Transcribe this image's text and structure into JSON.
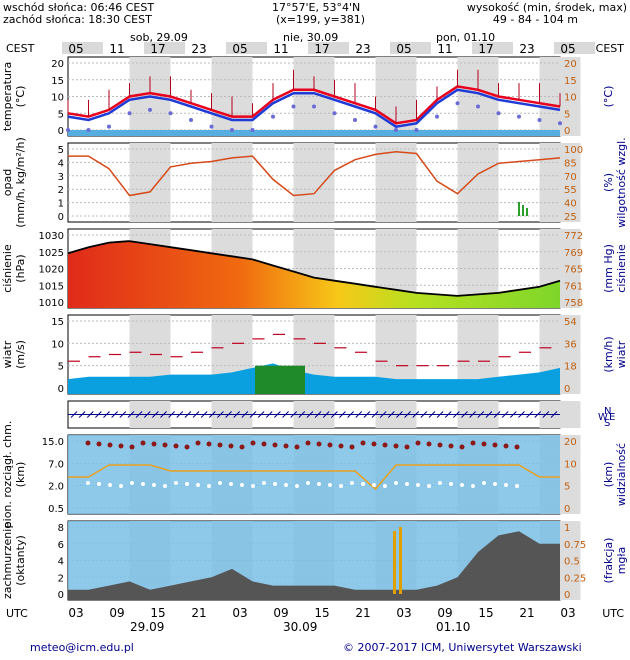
{
  "header": {
    "sunrise": "wschód słońca: 06:46 CEST",
    "sunset": "zachód słońca: 18:30 CEST",
    "coords": "17°57'E, 53°4'N",
    "grid": "(x=199, y=381)",
    "altitude_title": "wysokość (min, środek, max)",
    "altitude_values": "49 - 84 - 104 m"
  },
  "top_axis": {
    "tz": "CEST",
    "days": [
      "sob, 29.09",
      "nie, 30.09",
      "pon, 01.10"
    ],
    "hours": [
      "05",
      "11",
      "17",
      "23",
      "05",
      "11",
      "17",
      "23",
      "05",
      "11",
      "17",
      "23",
      "05"
    ]
  },
  "bottom_axis": {
    "tz": "UTC",
    "hours": [
      "03",
      "09",
      "15",
      "21",
      "03",
      "09",
      "15",
      "21",
      "03",
      "09",
      "15",
      "21",
      "03"
    ],
    "dates": [
      "29.09",
      "30.09",
      "01.10"
    ]
  },
  "panels": {
    "temperature": {
      "left_label": "temperatura",
      "left_unit": "(°C)",
      "right_label": "",
      "right_unit": "(°C)",
      "left_ticks": [
        "20",
        "15",
        "10",
        "5",
        "0"
      ],
      "right_ticks": [
        "20",
        "15",
        "10",
        "5",
        "0"
      ]
    },
    "precip": {
      "left_label": "opad",
      "left_unit": "(mm/h, kg/m²/h)",
      "right_label": "wilgotność wzgl.",
      "right_unit": "(%)",
      "left_ticks": [
        "5",
        "4",
        "3",
        "2",
        "1",
        "0"
      ],
      "right_ticks": [
        "100",
        "85",
        "70",
        "55",
        "40",
        "25"
      ]
    },
    "pressure": {
      "left_label": "ciśnienie",
      "left_unit": "(hPa)",
      "right_label": "ciśnienie",
      "right_unit": "(mm Hg)",
      "left_ticks": [
        "1030",
        "1025",
        "1020",
        "1015",
        "1010"
      ],
      "right_ticks": [
        "772",
        "769",
        "765",
        "761",
        "758"
      ]
    },
    "wind": {
      "left_label": "wiatr",
      "left_unit": "(m/s)",
      "right_label": "wiatr",
      "right_unit": "(km/h)",
      "left_ticks": [
        "15",
        "10",
        "5",
        "0"
      ],
      "right_ticks": [
        "54",
        "36",
        "18",
        "0"
      ]
    },
    "direction": {
      "compass": "NWSE"
    },
    "cloudbase": {
      "left_label": "pion. rozciągł. chm.",
      "left_unit": "(km)",
      "right_label": "widzialność",
      "right_unit": "(km)",
      "left_ticks": [
        "15.0",
        "7.0",
        "2.0",
        "0.5"
      ],
      "right_ticks": [
        "20",
        "10",
        "5",
        "0"
      ]
    },
    "cloudcover": {
      "left_label": "zachmurzenie",
      "left_unit": "(oktanty)",
      "right_label": "mgła",
      "right_unit": "(frakcja)",
      "left_ticks": [
        "8",
        "6",
        "4",
        "2",
        "0"
      ],
      "right_ticks": [
        "1",
        "0.75",
        "0.5",
        "0.25",
        "0"
      ]
    }
  },
  "footer": {
    "email": "meteo@icm.edu.pl",
    "copyright": "© 2007-2017 ICM, Uniwersytet Warszawski"
  },
  "colors": {
    "axis_blue": "#00008b",
    "temp_red": "#e8001c",
    "temp_blue": "#1f3bd6",
    "humidity": "#d64a1a",
    "wind_fill": "#0aa0e0",
    "sea": "#56aee0"
  },
  "chart_data": [
    {
      "type": "line",
      "title": "temperatura",
      "ylim": [
        0,
        20
      ],
      "x": [
        "05",
        "08",
        "11",
        "14",
        "17",
        "20",
        "23",
        "02",
        "05",
        "08",
        "11",
        "14",
        "17",
        "20",
        "23",
        "02",
        "05",
        "08",
        "11",
        "14",
        "17",
        "20",
        "23",
        "02",
        "05"
      ],
      "series": [
        {
          "values": [
            5,
            4,
            6,
            10,
            11,
            10,
            8,
            6,
            4,
            4,
            9,
            12,
            12,
            10,
            8,
            6,
            2,
            3,
            9,
            13,
            12,
            10,
            9,
            8,
            7
          ]
        },
        {
          "values": [
            4,
            3,
            5,
            9,
            10,
            9,
            7,
            5,
            3,
            3,
            8,
            11,
            11,
            9,
            7,
            5,
            1,
            2,
            8,
            12,
            11,
            9,
            8,
            7,
            6
          ]
        }
      ]
    },
    {
      "type": "line",
      "title": "wilgotność wzgl.",
      "ylim": [
        25,
        100
      ],
      "x": [
        "05",
        "08",
        "11",
        "14",
        "17",
        "20",
        "23",
        "02",
        "05",
        "08",
        "11",
        "14",
        "17",
        "20",
        "23",
        "02",
        "05",
        "08",
        "11",
        "14",
        "17",
        "20",
        "23",
        "02",
        "05"
      ],
      "series": [
        {
          "values": [
            92,
            92,
            78,
            48,
            52,
            80,
            84,
            86,
            90,
            92,
            66,
            48,
            50,
            76,
            88,
            94,
            97,
            95,
            64,
            50,
            72,
            84,
            86,
            88,
            90
          ]
        }
      ]
    },
    {
      "type": "area",
      "title": "ciśnienie",
      "ylim": [
        1008,
        1030
      ],
      "x": [
        "05",
        "08",
        "11",
        "14",
        "17",
        "20",
        "23",
        "02",
        "05",
        "08",
        "11",
        "14",
        "17",
        "20",
        "23",
        "02",
        "05",
        "08",
        "11",
        "14",
        "17",
        "20",
        "23",
        "02",
        "05"
      ],
      "series": [
        {
          "values": [
            1024,
            1026,
            1027.5,
            1028,
            1027,
            1026,
            1025,
            1024,
            1023,
            1022,
            1020,
            1018,
            1016,
            1015,
            1014,
            1013,
            1012,
            1011,
            1010.5,
            1010,
            1010.5,
            1011,
            1012,
            1013,
            1015
          ]
        }
      ]
    },
    {
      "type": "area",
      "title": "wiatr",
      "ylim": [
        0,
        15
      ],
      "x": [
        "05",
        "08",
        "11",
        "14",
        "17",
        "20",
        "23",
        "02",
        "05",
        "08",
        "11",
        "14",
        "17",
        "20",
        "23",
        "02",
        "05",
        "08",
        "11",
        "14",
        "17",
        "20",
        "23",
        "02",
        "05"
      ],
      "series": [
        {
          "values": [
            2,
            2.5,
            2.5,
            2.5,
            2.5,
            3,
            3,
            3,
            3.5,
            4.5,
            5.5,
            4,
            3,
            2.5,
            2.5,
            2.5,
            2,
            2,
            2,
            2,
            2,
            2.5,
            3,
            3.5,
            4.5
          ]
        },
        {
          "values": [
            6,
            7,
            7.5,
            8,
            7.5,
            7,
            8,
            9,
            10,
            11,
            12,
            11,
            10,
            9,
            8,
            6,
            5,
            5,
            5,
            6,
            6,
            7,
            8,
            9,
            10
          ]
        }
      ]
    },
    {
      "type": "area",
      "title": "zachmurzenie",
      "ylim": [
        0,
        8
      ],
      "x": [
        "05",
        "08",
        "11",
        "14",
        "17",
        "20",
        "23",
        "02",
        "05",
        "08",
        "11",
        "14",
        "17",
        "20",
        "23",
        "02",
        "05",
        "08",
        "11",
        "14",
        "17",
        "20",
        "23",
        "02",
        "05"
      ],
      "series": [
        {
          "values": [
            0.5,
            0.5,
            1,
            1.5,
            0.5,
            1,
            1.5,
            2,
            3,
            1.5,
            1,
            1,
            1,
            1,
            0.5,
            0.5,
            0.5,
            0.5,
            1,
            2,
            5,
            7,
            7.5,
            6,
            6
          ]
        }
      ]
    }
  ]
}
